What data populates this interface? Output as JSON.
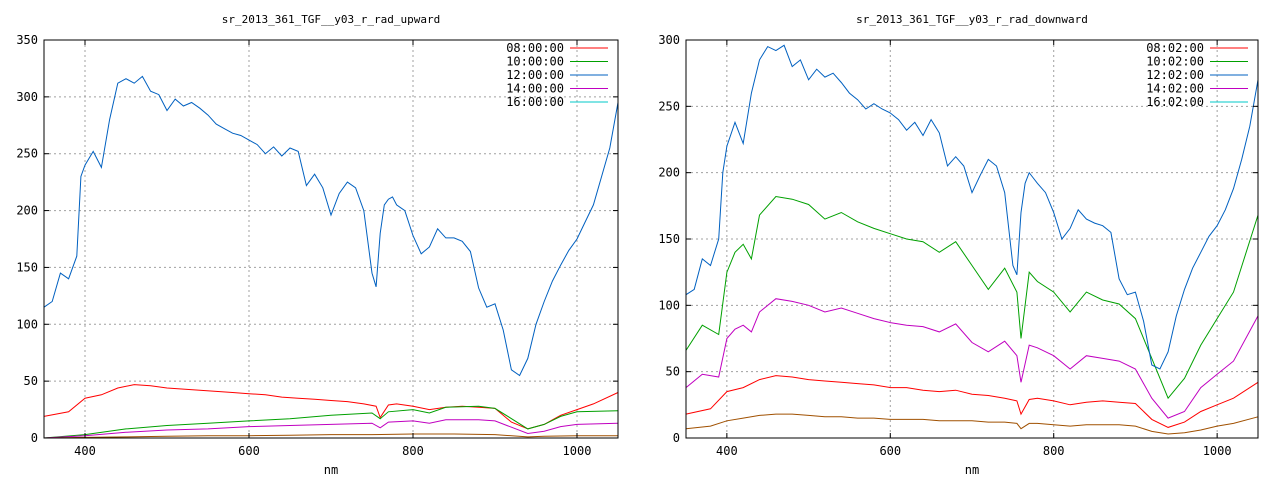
{
  "chart_data": [
    {
      "type": "line",
      "title": "sr_2013_361_TGF__y03_r_rad_upward",
      "xlabel": "nm",
      "ylabel": "",
      "xlim": [
        350,
        1050
      ],
      "ylim": [
        0,
        350
      ],
      "xticks": [
        400,
        600,
        800,
        1000
      ],
      "yticks": [
        0,
        50,
        100,
        150,
        200,
        250,
        300,
        350
      ],
      "grid": true,
      "legend": "top-right",
      "series": [
        {
          "name": "08:00:00",
          "color": "#ff0000",
          "x": [
            350,
            380,
            400,
            420,
            440,
            460,
            480,
            500,
            520,
            540,
            560,
            580,
            600,
            620,
            640,
            660,
            680,
            700,
            720,
            740,
            755,
            760,
            770,
            780,
            800,
            820,
            840,
            860,
            880,
            900,
            920,
            940,
            960,
            980,
            1000,
            1020,
            1050
          ],
          "y": [
            19,
            23,
            35,
            38,
            44,
            47,
            46,
            44,
            43,
            42,
            41,
            40,
            39,
            38,
            36,
            35,
            34,
            33,
            32,
            30,
            28,
            18,
            29,
            30,
            28,
            25,
            27,
            28,
            27,
            26,
            14,
            8,
            12,
            20,
            25,
            30,
            40
          ]
        },
        {
          "name": "10:00:00",
          "color": "#00a000",
          "x": [
            350,
            400,
            450,
            500,
            550,
            600,
            650,
            700,
            750,
            760,
            770,
            800,
            820,
            840,
            880,
            900,
            940,
            960,
            980,
            1000,
            1050
          ],
          "y": [
            0,
            3,
            8,
            11,
            13,
            15,
            17,
            20,
            22,
            17,
            23,
            25,
            22,
            27,
            28,
            26,
            8,
            12,
            19,
            23,
            24
          ]
        },
        {
          "name": "12:00:00",
          "color": "#0060c0",
          "x": [
            350,
            360,
            370,
            380,
            390,
            395,
            400,
            410,
            420,
            430,
            440,
            450,
            460,
            470,
            480,
            490,
            500,
            510,
            520,
            530,
            540,
            550,
            560,
            570,
            580,
            590,
            600,
            610,
            620,
            630,
            640,
            650,
            660,
            670,
            680,
            690,
            700,
            710,
            720,
            730,
            740,
            750,
            755,
            760,
            765,
            770,
            775,
            780,
            790,
            800,
            810,
            820,
            830,
            840,
            850,
            860,
            870,
            880,
            890,
            900,
            910,
            920,
            930,
            940,
            950,
            960,
            970,
            980,
            990,
            1000,
            1010,
            1020,
            1030,
            1040,
            1050
          ],
          "y": [
            115,
            120,
            145,
            140,
            160,
            230,
            240,
            252,
            238,
            280,
            312,
            316,
            312,
            318,
            305,
            302,
            288,
            298,
            292,
            295,
            290,
            284,
            276,
            272,
            268,
            266,
            262,
            258,
            250,
            256,
            248,
            255,
            252,
            222,
            232,
            220,
            196,
            215,
            225,
            220,
            200,
            145,
            133,
            180,
            205,
            210,
            212,
            205,
            200,
            178,
            162,
            168,
            184,
            176,
            176,
            173,
            164,
            132,
            115,
            118,
            95,
            60,
            55,
            70,
            100,
            120,
            138,
            152,
            165,
            175,
            190,
            205,
            230,
            255,
            295
          ]
        },
        {
          "name": "14:00:00",
          "color": "#c000c0",
          "x": [
            350,
            400,
            450,
            500,
            550,
            600,
            650,
            700,
            750,
            760,
            770,
            800,
            820,
            840,
            880,
            900,
            940,
            960,
            980,
            1000,
            1050
          ],
          "y": [
            0,
            2,
            5,
            7,
            8,
            10,
            11,
            12,
            13,
            9,
            14,
            15,
            13,
            16,
            16,
            15,
            4,
            6,
            10,
            12,
            13
          ]
        },
        {
          "name": "16:00:00",
          "color": "#00c8c8",
          "x": [
            350,
            1050
          ],
          "y": [
            0,
            0
          ]
        },
        {
          "name": "",
          "color": "#a05000",
          "x": [
            350,
            400,
            450,
            500,
            550,
            600,
            650,
            700,
            750,
            800,
            850,
            900,
            940,
            960,
            1000,
            1050
          ],
          "y": [
            0,
            0.5,
            1,
            1.5,
            2,
            2,
            2.5,
            3,
            3,
            3.5,
            3.5,
            3,
            1,
            1.5,
            2,
            2
          ]
        }
      ]
    },
    {
      "type": "line",
      "title": "sr_2013_361_TGF__y03_r_rad_downward",
      "xlabel": "nm",
      "ylabel": "",
      "xlim": [
        350,
        1050
      ],
      "ylim": [
        0,
        300
      ],
      "xticks": [
        400,
        600,
        800,
        1000
      ],
      "yticks": [
        0,
        50,
        100,
        150,
        200,
        250,
        300
      ],
      "grid": true,
      "legend": "top-right",
      "series": [
        {
          "name": "08:02:00",
          "color": "#ff0000",
          "x": [
            350,
            380,
            400,
            420,
            440,
            460,
            480,
            500,
            520,
            540,
            560,
            580,
            600,
            620,
            640,
            660,
            680,
            700,
            720,
            740,
            755,
            760,
            770,
            780,
            800,
            820,
            840,
            860,
            880,
            900,
            920,
            940,
            960,
            980,
            1000,
            1020,
            1050
          ],
          "y": [
            18,
            22,
            35,
            38,
            44,
            47,
            46,
            44,
            43,
            42,
            41,
            40,
            38,
            38,
            36,
            35,
            36,
            33,
            32,
            30,
            28,
            18,
            29,
            30,
            28,
            25,
            27,
            28,
            27,
            26,
            14,
            8,
            12,
            20,
            25,
            30,
            42
          ]
        },
        {
          "name": "10:02:00",
          "color": "#00a000",
          "x": [
            350,
            370,
            390,
            400,
            410,
            420,
            430,
            440,
            460,
            480,
            500,
            520,
            540,
            560,
            580,
            600,
            620,
            640,
            660,
            680,
            700,
            720,
            740,
            755,
            760,
            770,
            780,
            800,
            820,
            840,
            860,
            880,
            900,
            920,
            940,
            960,
            980,
            1000,
            1020,
            1050
          ],
          "y": [
            66,
            85,
            78,
            125,
            140,
            146,
            135,
            168,
            182,
            180,
            176,
            165,
            170,
            163,
            158,
            154,
            150,
            148,
            140,
            148,
            130,
            112,
            128,
            110,
            75,
            125,
            118,
            110,
            95,
            110,
            104,
            101,
            90,
            60,
            30,
            45,
            70,
            90,
            110,
            168
          ]
        },
        {
          "name": "12:02:00",
          "color": "#0060c0",
          "x": [
            350,
            360,
            370,
            380,
            390,
            395,
            400,
            410,
            420,
            430,
            440,
            450,
            460,
            470,
            480,
            490,
            500,
            510,
            520,
            530,
            540,
            550,
            560,
            570,
            580,
            590,
            600,
            610,
            620,
            630,
            640,
            650,
            660,
            670,
            680,
            690,
            700,
            710,
            720,
            730,
            740,
            750,
            755,
            760,
            765,
            770,
            775,
            780,
            790,
            800,
            810,
            820,
            830,
            840,
            850,
            860,
            870,
            880,
            890,
            900,
            910,
            920,
            930,
            940,
            950,
            960,
            970,
            980,
            990,
            1000,
            1010,
            1020,
            1030,
            1040,
            1050
          ],
          "y": [
            108,
            112,
            135,
            130,
            150,
            200,
            220,
            238,
            222,
            260,
            285,
            295,
            292,
            296,
            280,
            285,
            270,
            278,
            272,
            275,
            268,
            260,
            255,
            248,
            252,
            248,
            245,
            240,
            232,
            238,
            228,
            240,
            230,
            205,
            212,
            205,
            185,
            198,
            210,
            205,
            185,
            130,
            123,
            170,
            192,
            200,
            196,
            192,
            185,
            170,
            150,
            158,
            172,
            165,
            162,
            160,
            155,
            120,
            108,
            110,
            88,
            55,
            52,
            65,
            92,
            112,
            128,
            140,
            152,
            160,
            172,
            188,
            210,
            235,
            270
          ]
        },
        {
          "name": "14:02:00",
          "color": "#c000c0",
          "x": [
            350,
            370,
            390,
            400,
            410,
            420,
            430,
            440,
            460,
            480,
            500,
            520,
            540,
            560,
            580,
            600,
            620,
            640,
            660,
            680,
            700,
            720,
            740,
            755,
            760,
            770,
            780,
            800,
            820,
            840,
            860,
            880,
            900,
            920,
            940,
            960,
            980,
            1000,
            1020,
            1050
          ],
          "y": [
            38,
            48,
            46,
            75,
            82,
            85,
            80,
            95,
            105,
            103,
            100,
            95,
            98,
            94,
            90,
            87,
            85,
            84,
            80,
            86,
            72,
            65,
            73,
            62,
            42,
            70,
            68,
            62,
            52,
            62,
            60,
            58,
            52,
            30,
            15,
            20,
            38,
            48,
            58,
            92
          ]
        },
        {
          "name": "16:02:00",
          "color": "#00c8c8",
          "x": [
            350,
            1050
          ],
          "y": [
            0,
            0
          ]
        },
        {
          "name": "",
          "color": "#a05000",
          "x": [
            350,
            380,
            400,
            420,
            440,
            460,
            480,
            500,
            520,
            540,
            560,
            580,
            600,
            620,
            640,
            660,
            680,
            700,
            720,
            740,
            755,
            760,
            770,
            780,
            800,
            820,
            840,
            860,
            880,
            900,
            920,
            940,
            960,
            980,
            1000,
            1020,
            1050
          ],
          "y": [
            7,
            9,
            13,
            15,
            17,
            18,
            18,
            17,
            16,
            16,
            15,
            15,
            14,
            14,
            14,
            13,
            13,
            13,
            12,
            12,
            11,
            7,
            11,
            11,
            10,
            9,
            10,
            10,
            10,
            9,
            5,
            3,
            4,
            6,
            9,
            11,
            16
          ]
        }
      ]
    }
  ]
}
